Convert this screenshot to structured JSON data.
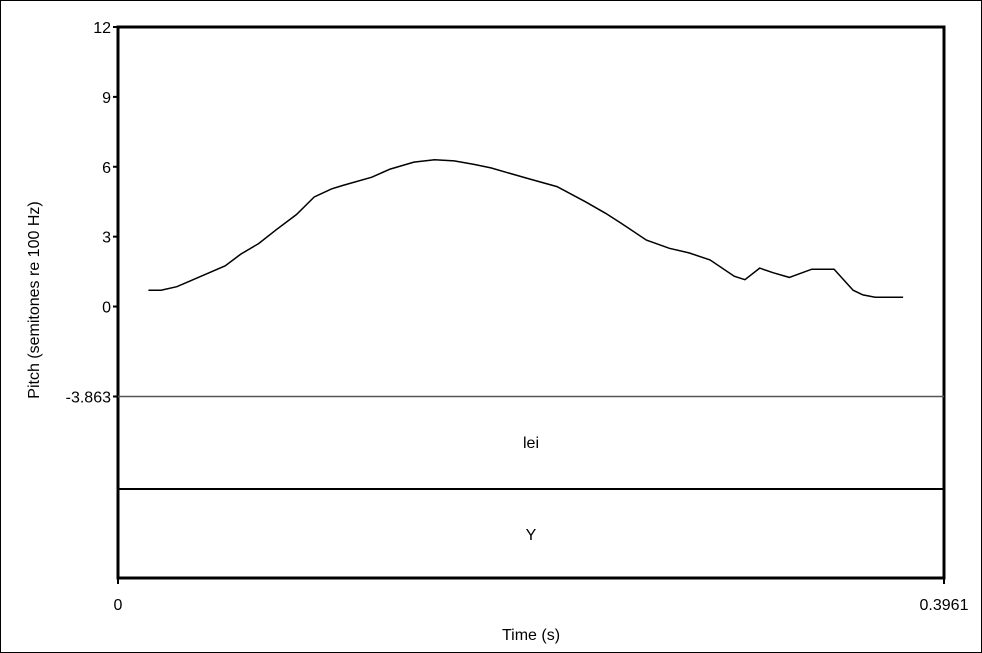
{
  "chart_data": {
    "type": "line",
    "xlabel": "Time (s)",
    "ylabel": "Pitch (semitones re 100 Hz)",
    "xlim": [
      0,
      0.3961
    ],
    "ylim": [
      -3.863,
      12
    ],
    "x_tick_labels": [
      "0",
      "0.3961"
    ],
    "y_tick_labels": [
      "12",
      "9",
      "6",
      "3",
      "0",
      "-3.863"
    ],
    "y_ticks": [
      12,
      9,
      6,
      3,
      0,
      -3.863
    ],
    "grid": false,
    "series": [
      {
        "x": [
          0.0146,
          0.0206,
          0.0282,
          0.0346,
          0.0424,
          0.0514,
          0.0589,
          0.0674,
          0.0759,
          0.0856,
          0.0941,
          0.1024,
          0.1079,
          0.1217,
          0.1305,
          0.1419,
          0.1518,
          0.1612,
          0.1707,
          0.1788,
          0.1963,
          0.2105,
          0.2241,
          0.2338,
          0.2409,
          0.2534,
          0.2644,
          0.2738,
          0.2839,
          0.2955,
          0.3006,
          0.3077,
          0.3141,
          0.3219,
          0.3327,
          0.3434,
          0.3525,
          0.3572,
          0.3631,
          0.3698,
          0.3765
        ],
        "y": [
          0.7,
          0.7,
          0.85,
          1.1,
          1.4,
          1.75,
          2.25,
          2.7,
          3.3,
          3.95,
          4.7,
          5.05,
          5.2,
          5.55,
          5.9,
          6.2,
          6.3,
          6.25,
          6.1,
          5.95,
          5.5,
          5.15,
          4.5,
          4.0,
          3.6,
          2.85,
          2.5,
          2.3,
          2.0,
          1.3,
          1.15,
          1.65,
          1.45,
          1.25,
          1.6,
          1.6,
          0.7,
          0.5,
          0.4,
          0.4,
          0.4
        ]
      }
    ]
  },
  "tiers": [
    {
      "label": "lei"
    },
    {
      "label": "Y"
    }
  ]
}
